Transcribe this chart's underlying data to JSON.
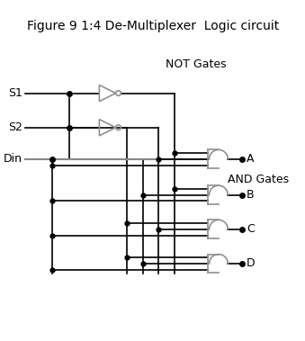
{
  "title": "Figure 9 1:4 De-Multiplexer  Logic circuit",
  "title_fontsize": 10,
  "bg_color": "#ffffff",
  "lc": "#000000",
  "gc": "#909090",
  "not_label": "NOT Gates",
  "and_label": "AND Gates",
  "inputs": [
    "S1",
    "S2",
    "Din"
  ],
  "outputs": [
    "A",
    "B",
    "C",
    "D"
  ]
}
